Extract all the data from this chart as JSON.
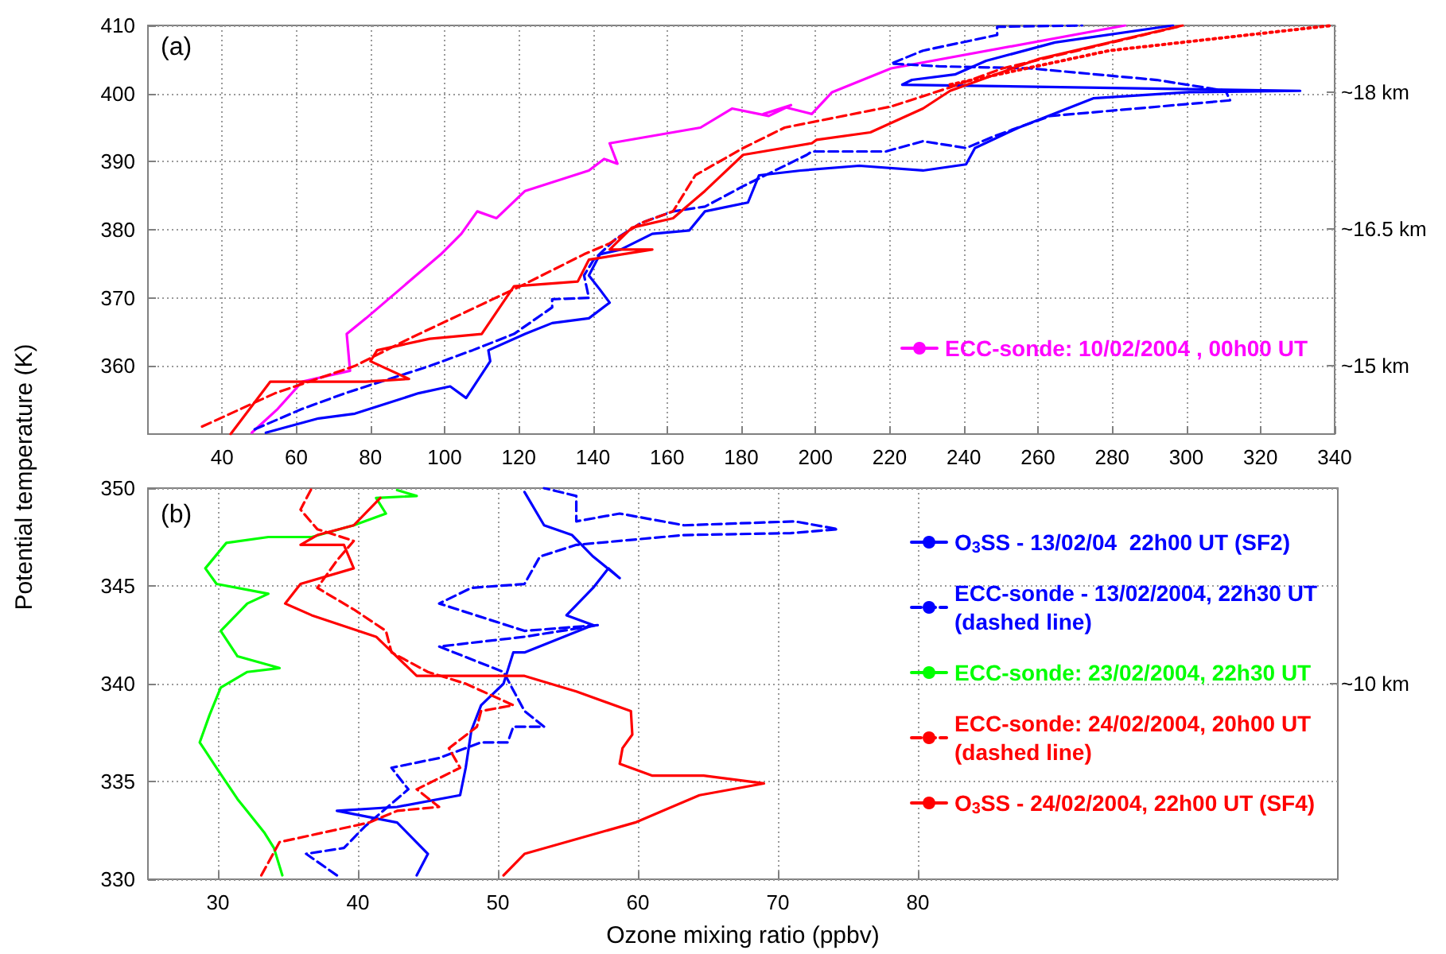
{
  "chart_data": [
    {
      "type": "line",
      "ylabel": "Potential temperature (K)",
      "annotations": [
        "(a)",
        "~15 km",
        "~16.5 km",
        "~18 km"
      ],
      "legend": "bottom right",
      "xlim": [
        20,
        340
      ],
      "xticks": [
        40,
        60,
        80,
        100,
        120,
        140,
        160,
        180,
        200,
        220,
        240,
        260,
        280,
        300,
        320,
        340
      ],
      "ylim": [
        350,
        410
      ],
      "yticks": [
        360,
        370,
        380,
        390,
        400,
        410
      ],
      "grid": true,
      "marker": "none",
      "series": [
        {
          "name": "ECC-sonde: 10/02/2004 , 00h00 UT",
          "color": "#ff00ff",
          "line_style": "solid",
          "x": [
            48,
            55,
            61.6,
            74.5,
            73.6,
            78.8,
            87.4,
            99,
            104.5,
            108.8,
            114,
            121.7,
            138.9,
            143,
            146.6,
            144.5,
            169,
            177.5,
            187.4,
            193.4,
            186,
            191.7,
            199,
            204.5,
            220.4,
            283.5
          ],
          "values": [
            350.2,
            353.7,
            357.7,
            359.3,
            364.7,
            367,
            371,
            376.4,
            379.4,
            382.7,
            381.7,
            385.7,
            388.7,
            390.4,
            389.7,
            392.7,
            395,
            397.8,
            396.7,
            398.3,
            397,
            398,
            397,
            400.2,
            403.7,
            410
          ]
        },
        {
          "color": "#0000ff",
          "line_style": "solid",
          "x": [
            51.8,
            66,
            75.8,
            93,
            101.5,
            105.8,
            112.3,
            111.8,
            121.7,
            129,
            138.9,
            144.5,
            141.9,
            138.9,
            141.9,
            147.5,
            156,
            166,
            170.2,
            181.8,
            184.8,
            196,
            211.8,
            229,
            240.6,
            243,
            254.8,
            274.9,
            300.7,
            330.7,
            223.4,
            226,
            237.6,
            246,
            264.6,
            296.4
          ],
          "values": [
            350.2,
            352.3,
            353,
            356,
            357,
            355.3,
            360.7,
            362.3,
            364.7,
            366.3,
            367,
            369.3,
            371.2,
            373.3,
            376.4,
            377.1,
            379.4,
            379.9,
            382.7,
            384,
            388,
            388.7,
            389.4,
            388.7,
            389.6,
            392,
            395,
            399.3,
            400.2,
            400.4,
            401.3,
            402,
            402.8,
            404.8,
            407.5,
            410
          ]
        },
        {
          "color": "#0000ff",
          "line_style": "dashed",
          "x": [
            48.8,
            61.6,
            73.2,
            96,
            107.5,
            118.7,
            129,
            129,
            138.9,
            137.6,
            140.2,
            146.2,
            153,
            161.6,
            170.2,
            180.5,
            197.7,
            199,
            219,
            229,
            240.6,
            249,
            263.3,
            311.8,
            310.6,
            292,
            257.8,
            233.3,
            220.4,
            229,
            249,
            249,
            271.9
          ],
          "values": [
            350.7,
            353.7,
            356,
            360,
            362.3,
            364.7,
            368.6,
            369.8,
            370,
            373.3,
            375.6,
            378.7,
            381,
            382.7,
            383.4,
            386.4,
            391,
            391.5,
            391.5,
            393,
            392,
            393.9,
            396.7,
            399,
            400.4,
            402,
            403.7,
            404,
            404.4,
            406.3,
            408.6,
            409.8,
            410
          ]
        },
        {
          "color": "#ff0000",
          "line_style": "solid",
          "x": [
            42.3,
            53,
            61.6,
            78.8,
            90.4,
            80,
            81.8,
            96,
            110,
            118.7,
            135.9,
            138.9,
            156,
            144.5,
            150.5,
            161.6,
            170.2,
            180.5,
            199,
            200.3,
            214.8,
            229,
            236.3,
            260.3,
            299
          ],
          "values": [
            350,
            357.7,
            357.7,
            357.7,
            358.1,
            360.7,
            362.3,
            364,
            364.7,
            371.7,
            372.4,
            375.6,
            377.1,
            377.1,
            380.3,
            381.7,
            385.7,
            391,
            392.7,
            393.2,
            394.3,
            397.8,
            400.4,
            405.1,
            410
          ]
        },
        {
          "color": "#ff0000",
          "line_style": "dashed",
          "x": [
            34.6,
            54.3,
            75.8,
            90.4,
            120.4,
            137.6,
            144.5,
            153,
            161.6,
            167.6,
            180.5,
            191.7,
            220.4,
            236.3,
            250.5,
            297.7
          ],
          "values": [
            351.1,
            356,
            360,
            364,
            371.7,
            376.4,
            378,
            381,
            382.7,
            388,
            392,
            395,
            398.1,
            400.9,
            403.7,
            409.8
          ]
        },
        {
          "color": "#ff0000",
          "line_style": "dotted",
          "x": [
            236.3,
            279.2,
            339.3
          ],
          "values": [
            401.3,
            406.3,
            410
          ]
        }
      ]
    },
    {
      "type": "line",
      "xlabel": "Ozone mixing ratio (ppbv)",
      "annotations": [
        "(b)",
        "~10 km"
      ],
      "legend": "right",
      "xlim": [
        25,
        110
      ],
      "xticks": [
        30,
        40,
        50,
        60,
        70,
        80
      ],
      "ylim": [
        330,
        350
      ],
      "yticks": [
        330,
        335,
        340,
        345,
        350
      ],
      "grid": true,
      "marker": "none",
      "series": [
        {
          "name": "O$_{3}$SS - 13/02/04  22h00 UT (SF2)",
          "color": "#0000ff",
          "line_style": "solid",
          "x": [
            44.2,
            45,
            42.8,
            38.5,
            42.8,
            47.3,
            47.7,
            48.1,
            48.8,
            50.4,
            51.1,
            51.9,
            56.8,
            54.9,
            56.8,
            57.9,
            58.7,
            56.8,
            55.3,
            53.3,
            51.9
          ],
          "values": [
            330.2,
            331.3,
            332.9,
            333.5,
            333.7,
            334.3,
            335.7,
            337.6,
            338.9,
            340,
            341.6,
            341.6,
            343,
            343.5,
            344.9,
            345.9,
            345.4,
            346.5,
            347.6,
            348.1,
            349.8
          ]
        },
        {
          "name": "ECC-sonde - 13/02/2004, 22h30 UT\n(dashed line)",
          "color": "#0000ff",
          "line_style": "dashed",
          "x": [
            38.5,
            36.3,
            39,
            40.5,
            43.6,
            42.4,
            45.8,
            48.8,
            50.7,
            51.1,
            53.3,
            51.9,
            50.4,
            45.8,
            51.9,
            57.2,
            51.9,
            45.8,
            48.1,
            51.9,
            53,
            55.6,
            63.3,
            70.9,
            74.3,
            71.2,
            63.3,
            58.7,
            55.6,
            55.6,
            53.3
          ],
          "values": [
            330.2,
            331.3,
            331.6,
            332.7,
            334.6,
            335.7,
            336.2,
            337,
            337,
            337.8,
            337.8,
            338.6,
            340.6,
            341.9,
            342.4,
            343,
            342.7,
            344.1,
            344.9,
            345.1,
            346.5,
            347.1,
            347.6,
            347.7,
            347.9,
            348.3,
            348.1,
            348.7,
            348.3,
            349.6,
            350
          ]
        },
        {
          "name": "ECC-sonde: 23/02/2004, 22h30 UT",
          "color": "#00ff00",
          "line_style": "solid",
          "x": [
            34.6,
            34,
            33.3,
            31.4,
            29.9,
            28.7,
            29.4,
            30.2,
            32.1,
            34.4,
            31.4,
            30.2,
            32.1,
            33.6,
            29.9,
            29.1,
            30.6,
            33.6,
            36.7,
            39.7,
            42,
            41.3,
            44.2,
            42.8
          ],
          "values": [
            330.2,
            331.6,
            332.4,
            334.1,
            335.7,
            337,
            338.4,
            339.8,
            340.6,
            340.8,
            341.4,
            342.7,
            344.1,
            344.6,
            345.1,
            345.9,
            347.2,
            347.5,
            347.5,
            348.1,
            348.7,
            349.5,
            349.6,
            349.9
          ]
        },
        {
          "name": "ECC-sonde: 24/02/2004, 20h00 UT\n(dashed line)",
          "color": "#ff0000",
          "line_style": "dashed",
          "x": [
            33.1,
            34.4,
            40.8,
            42.8,
            45.8,
            44.2,
            47.3,
            46.5,
            48.5,
            48.8,
            51.1,
            47.7,
            45,
            42.4,
            42,
            39.7,
            37.1,
            38.5,
            39.7,
            37.1,
            35.9,
            36.7
          ],
          "values": [
            330.2,
            331.9,
            332.9,
            333.5,
            333.7,
            334.6,
            335.7,
            336.7,
            337.8,
            338.6,
            338.9,
            340,
            340.6,
            341.6,
            342.7,
            343.8,
            344.9,
            346.3,
            347.3,
            347.9,
            348.9,
            350
          ]
        },
        {
          "name": "O$_{3}$SS - 24/02/2004, 22h00 UT (SF4)",
          "color": "#ff0000",
          "line_style": "solid",
          "x": [
            50.4,
            51.9,
            59.8,
            64.4,
            69,
            64.7,
            61,
            58.7,
            58.9,
            59.6,
            59.5,
            55.6,
            51.9,
            44.2,
            41.3,
            36.7,
            34.8,
            35.9,
            39.7,
            39,
            35.9,
            37.1,
            39.7,
            41.6
          ],
          "values": [
            330.2,
            331.3,
            332.9,
            334.3,
            334.9,
            335.3,
            335.3,
            335.9,
            336.7,
            337.4,
            338.6,
            339.6,
            340.4,
            340.4,
            342.4,
            343.5,
            344.1,
            345.1,
            345.9,
            347.1,
            347.1,
            347.6,
            348.1,
            349.5
          ]
        }
      ]
    }
  ]
}
